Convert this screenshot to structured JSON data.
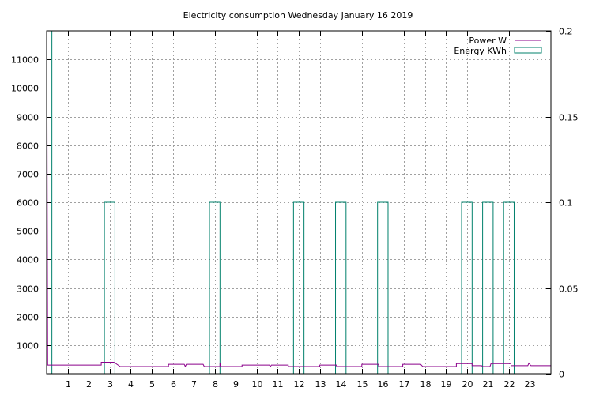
{
  "chart_data": {
    "type": "line",
    "title": "Electricity consumption Wednesday January 16 2019",
    "xlabel": "",
    "ylabel": "",
    "y2label": "",
    "grid": true,
    "legend_position": "top-right",
    "x_ticks": [
      1,
      2,
      3,
      4,
      5,
      6,
      7,
      8,
      9,
      10,
      11,
      12,
      13,
      14,
      15,
      16,
      17,
      18,
      19,
      20,
      21,
      22,
      23
    ],
    "xlim": [
      0,
      24
    ],
    "y_ticks": [
      1000,
      2000,
      3000,
      4000,
      5000,
      6000,
      7000,
      8000,
      9000,
      10000,
      11000
    ],
    "ylim": [
      0,
      12000
    ],
    "y2_ticks": [
      0,
      0.05,
      0.1,
      0.15,
      0.2
    ],
    "y2_tick_labels": [
      "0",
      "0.05",
      "0.1",
      "0.15",
      "0.2"
    ],
    "y2lim": [
      0,
      0.2
    ],
    "series": [
      {
        "name": "Power W",
        "color": "#8b008b",
        "style": "line",
        "axis": "y1",
        "points": [
          [
            0.0,
            1700
          ],
          [
            0.02,
            9000
          ],
          [
            0.05,
            300
          ],
          [
            2.6,
            300
          ],
          [
            2.6,
            400
          ],
          [
            3.2,
            400
          ],
          [
            3.4,
            300
          ],
          [
            3.5,
            250
          ],
          [
            5.8,
            250
          ],
          [
            5.8,
            330
          ],
          [
            6.55,
            330
          ],
          [
            6.6,
            250
          ],
          [
            6.65,
            330
          ],
          [
            7.45,
            330
          ],
          [
            7.5,
            250
          ],
          [
            8.25,
            250
          ],
          [
            8.25,
            380
          ],
          [
            8.3,
            250
          ],
          [
            9.3,
            250
          ],
          [
            9.3,
            300
          ],
          [
            10.6,
            300
          ],
          [
            10.65,
            250
          ],
          [
            10.7,
            300
          ],
          [
            11.5,
            300
          ],
          [
            11.5,
            250
          ],
          [
            13.0,
            250
          ],
          [
            13.0,
            300
          ],
          [
            13.8,
            300
          ],
          [
            13.8,
            250
          ],
          [
            15.0,
            250
          ],
          [
            15.0,
            330
          ],
          [
            15.8,
            330
          ],
          [
            15.8,
            250
          ],
          [
            16.95,
            250
          ],
          [
            16.95,
            330
          ],
          [
            17.8,
            330
          ],
          [
            17.9,
            250
          ],
          [
            19.5,
            250
          ],
          [
            19.5,
            350
          ],
          [
            20.25,
            350
          ],
          [
            20.25,
            280
          ],
          [
            20.7,
            280
          ],
          [
            20.75,
            250
          ],
          [
            21.1,
            250
          ],
          [
            21.15,
            350
          ],
          [
            22.1,
            350
          ],
          [
            22.1,
            280
          ],
          [
            22.9,
            280
          ],
          [
            22.95,
            370
          ],
          [
            23.05,
            280
          ],
          [
            24.0,
            280
          ]
        ]
      },
      {
        "name": "Energy KWh",
        "color": "#00806b",
        "style": "boxes",
        "axis": "y2",
        "bars": [
          {
            "x0": 0.0,
            "x1": 0.25,
            "value": 0.2
          },
          {
            "x0": 2.75,
            "x1": 3.25,
            "value": 0.1
          },
          {
            "x0": 7.75,
            "x1": 8.25,
            "value": 0.1
          },
          {
            "x0": 11.75,
            "x1": 12.25,
            "value": 0.1
          },
          {
            "x0": 13.75,
            "x1": 14.25,
            "value": 0.1
          },
          {
            "x0": 15.75,
            "x1": 16.25,
            "value": 0.1
          },
          {
            "x0": 19.75,
            "x1": 20.25,
            "value": 0.1
          },
          {
            "x0": 20.75,
            "x1": 21.25,
            "value": 0.1
          },
          {
            "x0": 21.75,
            "x1": 22.25,
            "value": 0.1
          }
        ]
      }
    ]
  }
}
